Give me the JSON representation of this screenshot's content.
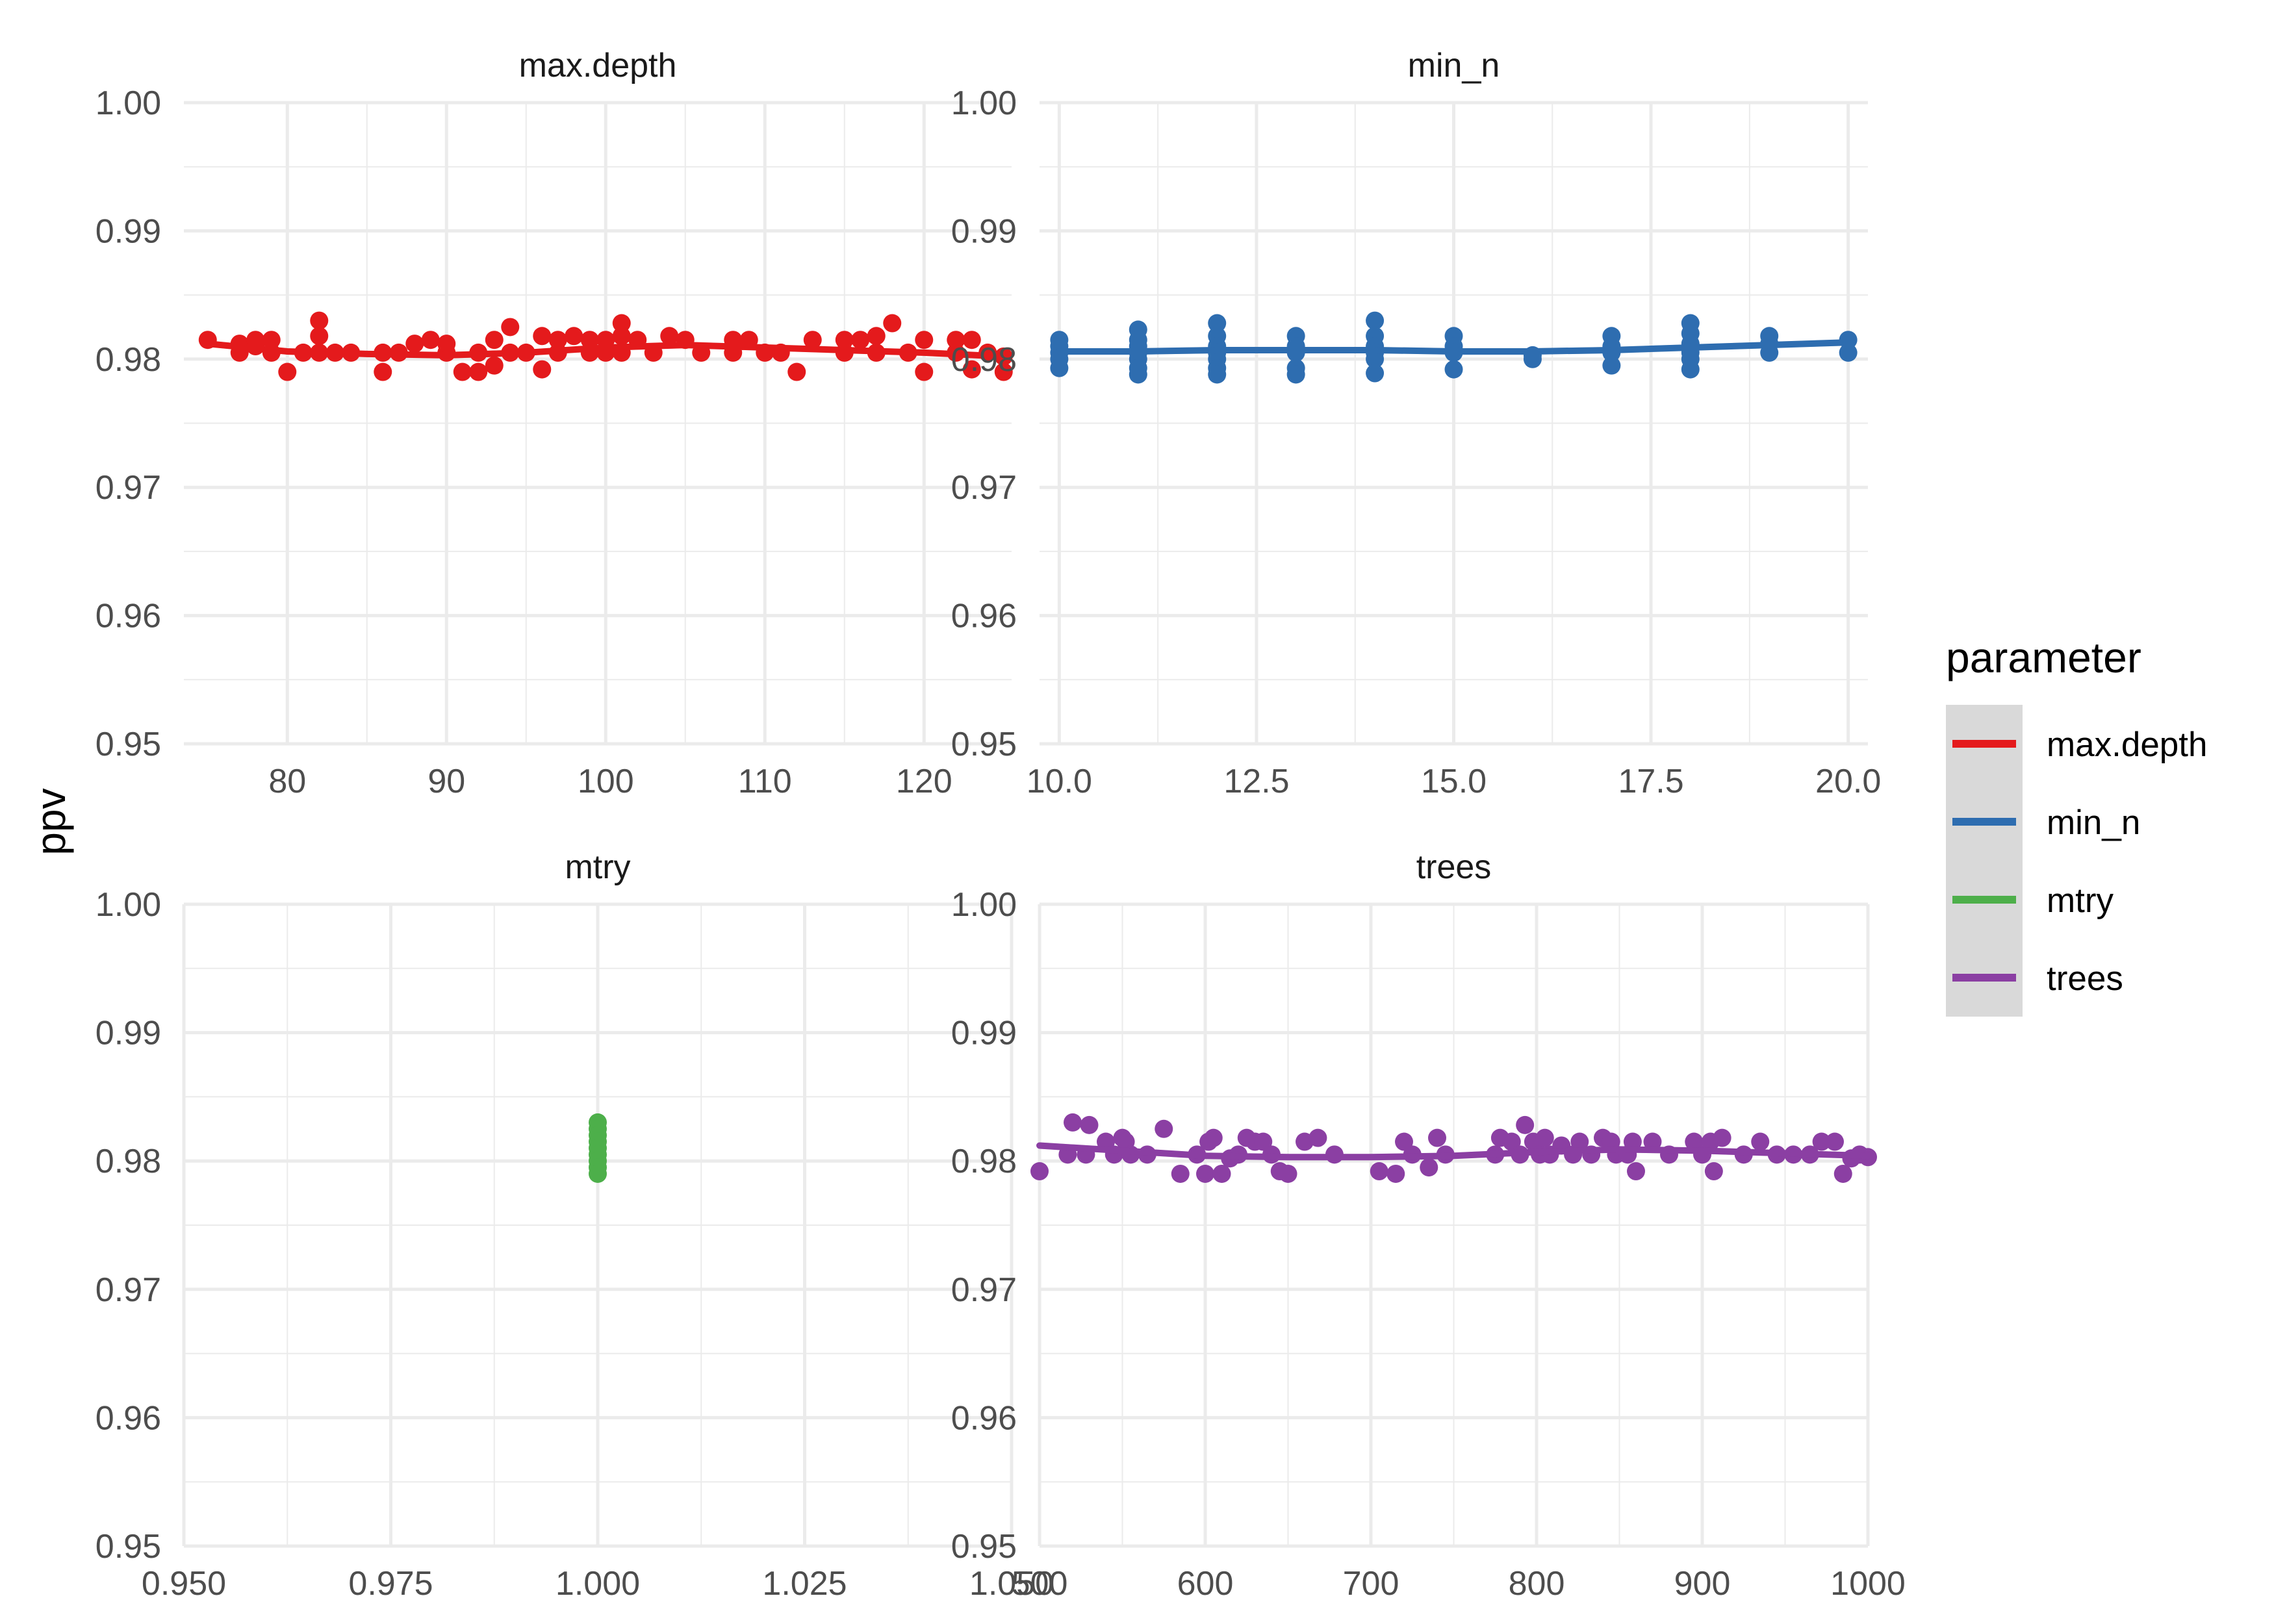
{
  "chart_data": {
    "type": "scatter",
    "ylabel": "ppv",
    "legend": {
      "title": "parameter",
      "position": "right",
      "entries": [
        "max.depth",
        "min_n",
        "mtry",
        "trees"
      ]
    },
    "colors": {
      "max.depth": "#E41A1C",
      "min_n": "#2E6DB0",
      "mtry": "#4DAF4A",
      "trees": "#8B3FA3",
      "grid": "#EBEBEB",
      "legend_key_bg": "#D9D9D9",
      "ribbon": "#BBBBBB"
    },
    "grid": true,
    "panels": [
      {
        "strip": "max.depth",
        "series": "max.depth",
        "xlim": [
          73.5,
          125.5
        ],
        "ylim": [
          0.95,
          1.0
        ],
        "xticks": [
          80,
          90,
          100,
          110,
          120
        ],
        "xtick_labels": [
          "80",
          "90",
          "100",
          "110",
          "120"
        ],
        "yticks": [
          0.95,
          0.96,
          0.97,
          0.98,
          0.99,
          1.0
        ],
        "ytick_labels": [
          "0.95",
          "0.96",
          "0.97",
          "0.98",
          "0.99",
          "1.00"
        ],
        "points": [
          [
            75,
            0.9815
          ],
          [
            77,
            0.9805
          ],
          [
            77,
            0.9812
          ],
          [
            78,
            0.981
          ],
          [
            78,
            0.9815
          ],
          [
            79,
            0.9805
          ],
          [
            79,
            0.9815
          ],
          [
            80,
            0.979
          ],
          [
            81,
            0.9805
          ],
          [
            82,
            0.983
          ],
          [
            82,
            0.9818
          ],
          [
            82,
            0.9805
          ],
          [
            83,
            0.9805
          ],
          [
            84,
            0.9805
          ],
          [
            86,
            0.979
          ],
          [
            86,
            0.9805
          ],
          [
            87,
            0.9805
          ],
          [
            88,
            0.9812
          ],
          [
            89,
            0.9815
          ],
          [
            90,
            0.9805
          ],
          [
            90,
            0.9812
          ],
          [
            91,
            0.979
          ],
          [
            92,
            0.9805
          ],
          [
            92,
            0.979
          ],
          [
            93,
            0.9795
          ],
          [
            93,
            0.9815
          ],
          [
            94,
            0.9805
          ],
          [
            94,
            0.9825
          ],
          [
            95,
            0.9805
          ],
          [
            96,
            0.9792
          ],
          [
            96,
            0.9818
          ],
          [
            97,
            0.9805
          ],
          [
            97,
            0.9815
          ],
          [
            98,
            0.9818
          ],
          [
            99,
            0.9805
          ],
          [
            99,
            0.9815
          ],
          [
            100,
            0.9805
          ],
          [
            100,
            0.9815
          ],
          [
            101,
            0.9828
          ],
          [
            101,
            0.9805
          ],
          [
            101,
            0.9818
          ],
          [
            102,
            0.9815
          ],
          [
            103,
            0.9805
          ],
          [
            104,
            0.9818
          ],
          [
            105,
            0.9815
          ],
          [
            106,
            0.9805
          ],
          [
            108,
            0.9805
          ],
          [
            108,
            0.9815
          ],
          [
            109,
            0.9815
          ],
          [
            110,
            0.9805
          ],
          [
            111,
            0.9805
          ],
          [
            112,
            0.979
          ],
          [
            113,
            0.9815
          ],
          [
            115,
            0.9805
          ],
          [
            115,
            0.9815
          ],
          [
            116,
            0.9815
          ],
          [
            117,
            0.9805
          ],
          [
            117,
            0.9818
          ],
          [
            118,
            0.9828
          ],
          [
            119,
            0.9805
          ],
          [
            120,
            0.979
          ],
          [
            120,
            0.9815
          ],
          [
            122,
            0.9805
          ],
          [
            122,
            0.9815
          ],
          [
            123,
            0.9792
          ],
          [
            123,
            0.9815
          ],
          [
            124,
            0.9805
          ],
          [
            125,
            0.979
          ],
          [
            125,
            0.9802
          ]
        ],
        "fit": [
          [
            75,
            0.9812
          ],
          [
            80,
            0.9806
          ],
          [
            85,
            0.9804
          ],
          [
            90,
            0.9803
          ],
          [
            95,
            0.9805
          ],
          [
            100,
            0.9809
          ],
          [
            105,
            0.9811
          ],
          [
            110,
            0.9809
          ],
          [
            115,
            0.9807
          ],
          [
            120,
            0.9805
          ],
          [
            125,
            0.9802
          ]
        ]
      },
      {
        "strip": "min_n",
        "series": "min_n",
        "xlim": [
          9.75,
          20.25
        ],
        "ylim": [
          0.95,
          1.0
        ],
        "xticks": [
          10,
          12.5,
          15,
          17.5,
          20
        ],
        "xtick_labels": [
          "10.0",
          "12.5",
          "15.0",
          "17.5",
          "20.0"
        ],
        "yticks": [
          0.95,
          0.96,
          0.97,
          0.98,
          0.99,
          1.0
        ],
        "ytick_labels": [
          "0.95",
          "0.96",
          "0.97",
          "0.98",
          "0.99",
          "1.00"
        ],
        "points": [
          [
            10,
            0.9815
          ],
          [
            10,
            0.981
          ],
          [
            10,
            0.9805
          ],
          [
            10,
            0.98
          ],
          [
            10,
            0.9793
          ],
          [
            11,
            0.9823
          ],
          [
            11,
            0.9815
          ],
          [
            11,
            0.981
          ],
          [
            11,
            0.9805
          ],
          [
            11,
            0.98
          ],
          [
            11,
            0.9793
          ],
          [
            11,
            0.9788
          ],
          [
            12,
            0.9828
          ],
          [
            12,
            0.9818
          ],
          [
            12,
            0.981
          ],
          [
            12,
            0.9805
          ],
          [
            12,
            0.98
          ],
          [
            12,
            0.9793
          ],
          [
            12,
            0.9788
          ],
          [
            13,
            0.9818
          ],
          [
            13,
            0.981
          ],
          [
            13,
            0.9805
          ],
          [
            13,
            0.9793
          ],
          [
            13,
            0.9788
          ],
          [
            14,
            0.983
          ],
          [
            14,
            0.9818
          ],
          [
            14,
            0.981
          ],
          [
            14,
            0.9805
          ],
          [
            14,
            0.98
          ],
          [
            14,
            0.9789
          ],
          [
            15,
            0.9818
          ],
          [
            15,
            0.981
          ],
          [
            15,
            0.9805
          ],
          [
            15,
            0.9792
          ],
          [
            16,
            0.9803
          ],
          [
            16,
            0.98
          ],
          [
            17,
            0.9818
          ],
          [
            17,
            0.981
          ],
          [
            17,
            0.9805
          ],
          [
            17,
            0.9795
          ],
          [
            18,
            0.9828
          ],
          [
            18,
            0.982
          ],
          [
            18,
            0.9812
          ],
          [
            18,
            0.9805
          ],
          [
            18,
            0.98
          ],
          [
            18,
            0.9792
          ],
          [
            19,
            0.9818
          ],
          [
            19,
            0.9812
          ],
          [
            19,
            0.9805
          ],
          [
            20,
            0.9815
          ],
          [
            20,
            0.9805
          ]
        ],
        "fit": [
          [
            10,
            0.9806
          ],
          [
            11,
            0.9806
          ],
          [
            12,
            0.9807
          ],
          [
            13,
            0.9807
          ],
          [
            14,
            0.9807
          ],
          [
            15,
            0.9806
          ],
          [
            16,
            0.9806
          ],
          [
            17,
            0.9807
          ],
          [
            18,
            0.9809
          ],
          [
            19,
            0.9811
          ],
          [
            20,
            0.9813
          ]
        ]
      },
      {
        "strip": "mtry",
        "series": "mtry",
        "xlim": [
          0.95,
          1.05
        ],
        "ylim": [
          0.95,
          1.0
        ],
        "xticks": [
          0.95,
          0.975,
          1.0,
          1.025,
          1.05
        ],
        "xtick_labels": [
          "0.950",
          "0.975",
          "1.000",
          "1.025",
          "1.050"
        ],
        "yticks": [
          0.95,
          0.96,
          0.97,
          0.98,
          0.99,
          1.0
        ],
        "ytick_labels": [
          "0.95",
          "0.96",
          "0.97",
          "0.98",
          "0.99",
          "1.00"
        ],
        "points": [
          [
            1,
            0.983
          ],
          [
            1,
            0.9825
          ],
          [
            1,
            0.982
          ],
          [
            1,
            0.9815
          ],
          [
            1,
            0.981
          ],
          [
            1,
            0.9805
          ],
          [
            1,
            0.98
          ],
          [
            1,
            0.9795
          ],
          [
            1,
            0.979
          ]
        ],
        "fit": []
      },
      {
        "strip": "trees",
        "series": "trees",
        "xlim": [
          500,
          1000
        ],
        "ylim": [
          0.95,
          1.0
        ],
        "xticks": [
          500,
          600,
          700,
          800,
          900,
          1000
        ],
        "xtick_labels": [
          "500",
          "600",
          "700",
          "800",
          "900",
          "1000"
        ],
        "yticks": [
          0.95,
          0.96,
          0.97,
          0.98,
          0.99,
          1.0
        ],
        "ytick_labels": [
          "0.95",
          "0.96",
          "0.97",
          "0.98",
          "0.99",
          "1.00"
        ],
        "points": [
          [
            500,
            0.9792
          ],
          [
            517,
            0.9805
          ],
          [
            520,
            0.983
          ],
          [
            528,
            0.9805
          ],
          [
            530,
            0.9828
          ],
          [
            540,
            0.9815
          ],
          [
            545,
            0.9805
          ],
          [
            550,
            0.9818
          ],
          [
            552,
            0.9815
          ],
          [
            555,
            0.9805
          ],
          [
            565,
            0.9805
          ],
          [
            575,
            0.9825
          ],
          [
            585,
            0.979
          ],
          [
            595,
            0.9805
          ],
          [
            600,
            0.979
          ],
          [
            602,
            0.9815
          ],
          [
            605,
            0.9818
          ],
          [
            610,
            0.979
          ],
          [
            615,
            0.9802
          ],
          [
            620,
            0.9805
          ],
          [
            625,
            0.9818
          ],
          [
            630,
            0.9815
          ],
          [
            635,
            0.9815
          ],
          [
            640,
            0.9805
          ],
          [
            645,
            0.9792
          ],
          [
            650,
            0.979
          ],
          [
            660,
            0.9815
          ],
          [
            668,
            0.9818
          ],
          [
            678,
            0.9805
          ],
          [
            705,
            0.9792
          ],
          [
            715,
            0.979
          ],
          [
            720,
            0.9815
          ],
          [
            725,
            0.9805
          ],
          [
            735,
            0.9795
          ],
          [
            740,
            0.9818
          ],
          [
            745,
            0.9805
          ],
          [
            775,
            0.9805
          ],
          [
            778,
            0.9818
          ],
          [
            785,
            0.9815
          ],
          [
            790,
            0.9805
          ],
          [
            793,
            0.9828
          ],
          [
            798,
            0.9815
          ],
          [
            802,
            0.9805
          ],
          [
            805,
            0.9818
          ],
          [
            808,
            0.9805
          ],
          [
            815,
            0.9812
          ],
          [
            822,
            0.9805
          ],
          [
            826,
            0.9815
          ],
          [
            833,
            0.9805
          ],
          [
            840,
            0.9818
          ],
          [
            845,
            0.9815
          ],
          [
            848,
            0.9805
          ],
          [
            855,
            0.9805
          ],
          [
            858,
            0.9815
          ],
          [
            860,
            0.9792
          ],
          [
            870,
            0.9815
          ],
          [
            880,
            0.9805
          ],
          [
            895,
            0.9815
          ],
          [
            900,
            0.9805
          ],
          [
            905,
            0.9815
          ],
          [
            907,
            0.9792
          ],
          [
            912,
            0.9818
          ],
          [
            925,
            0.9805
          ],
          [
            935,
            0.9815
          ],
          [
            945,
            0.9805
          ],
          [
            955,
            0.9805
          ],
          [
            965,
            0.9805
          ],
          [
            972,
            0.9815
          ],
          [
            980,
            0.9815
          ],
          [
            985,
            0.979
          ],
          [
            990,
            0.9802
          ],
          [
            995,
            0.9805
          ],
          [
            1000,
            0.9803
          ]
        ],
        "fit": [
          [
            500,
            0.9812
          ],
          [
            550,
            0.9808
          ],
          [
            600,
            0.9804
          ],
          [
            650,
            0.9803
          ],
          [
            700,
            0.9803
          ],
          [
            750,
            0.9804
          ],
          [
            800,
            0.9807
          ],
          [
            850,
            0.9809
          ],
          [
            900,
            0.9808
          ],
          [
            950,
            0.9806
          ],
          [
            1000,
            0.9804
          ]
        ]
      }
    ]
  }
}
